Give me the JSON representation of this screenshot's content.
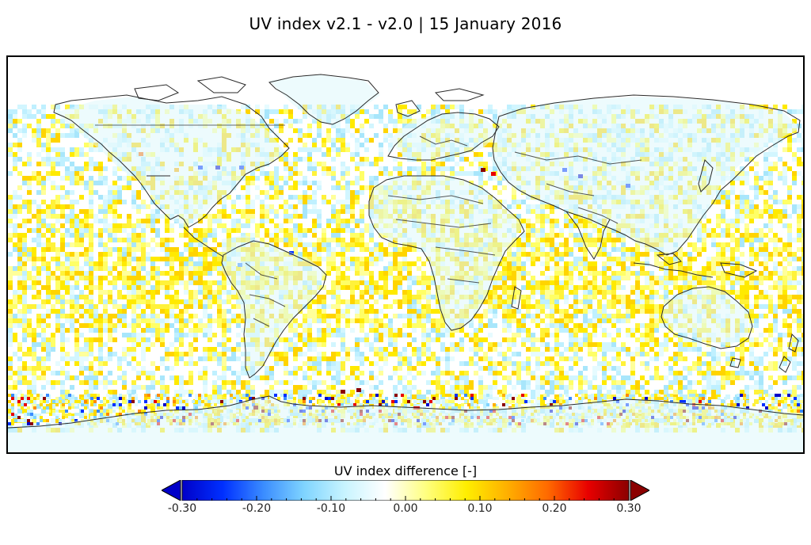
{
  "title": "UV index v2.1 - v2.0  |  15 January 2016",
  "colorbar": {
    "label": "UV index difference  [-]",
    "ticks": [
      "-0.30",
      "-0.20",
      "-0.10",
      "0.00",
      "0.10",
      "0.20",
      "0.30"
    ],
    "colors": [
      "#0000c8",
      "#0030ff",
      "#3a8cff",
      "#7fd4ff",
      "#c8f4ff",
      "#ffffff",
      "#ffff80",
      "#ffee00",
      "#ffb000",
      "#ff6a00",
      "#e80000",
      "#8b0000"
    ]
  },
  "map": {
    "projection": "equirectangular",
    "land_outline_color": "#2a2a2a",
    "pattern": {
      "tropics": "yellow positive differences",
      "southern_ocean_edge": "red / blue extremes",
      "continents": "light blue negative differences"
    }
  }
}
